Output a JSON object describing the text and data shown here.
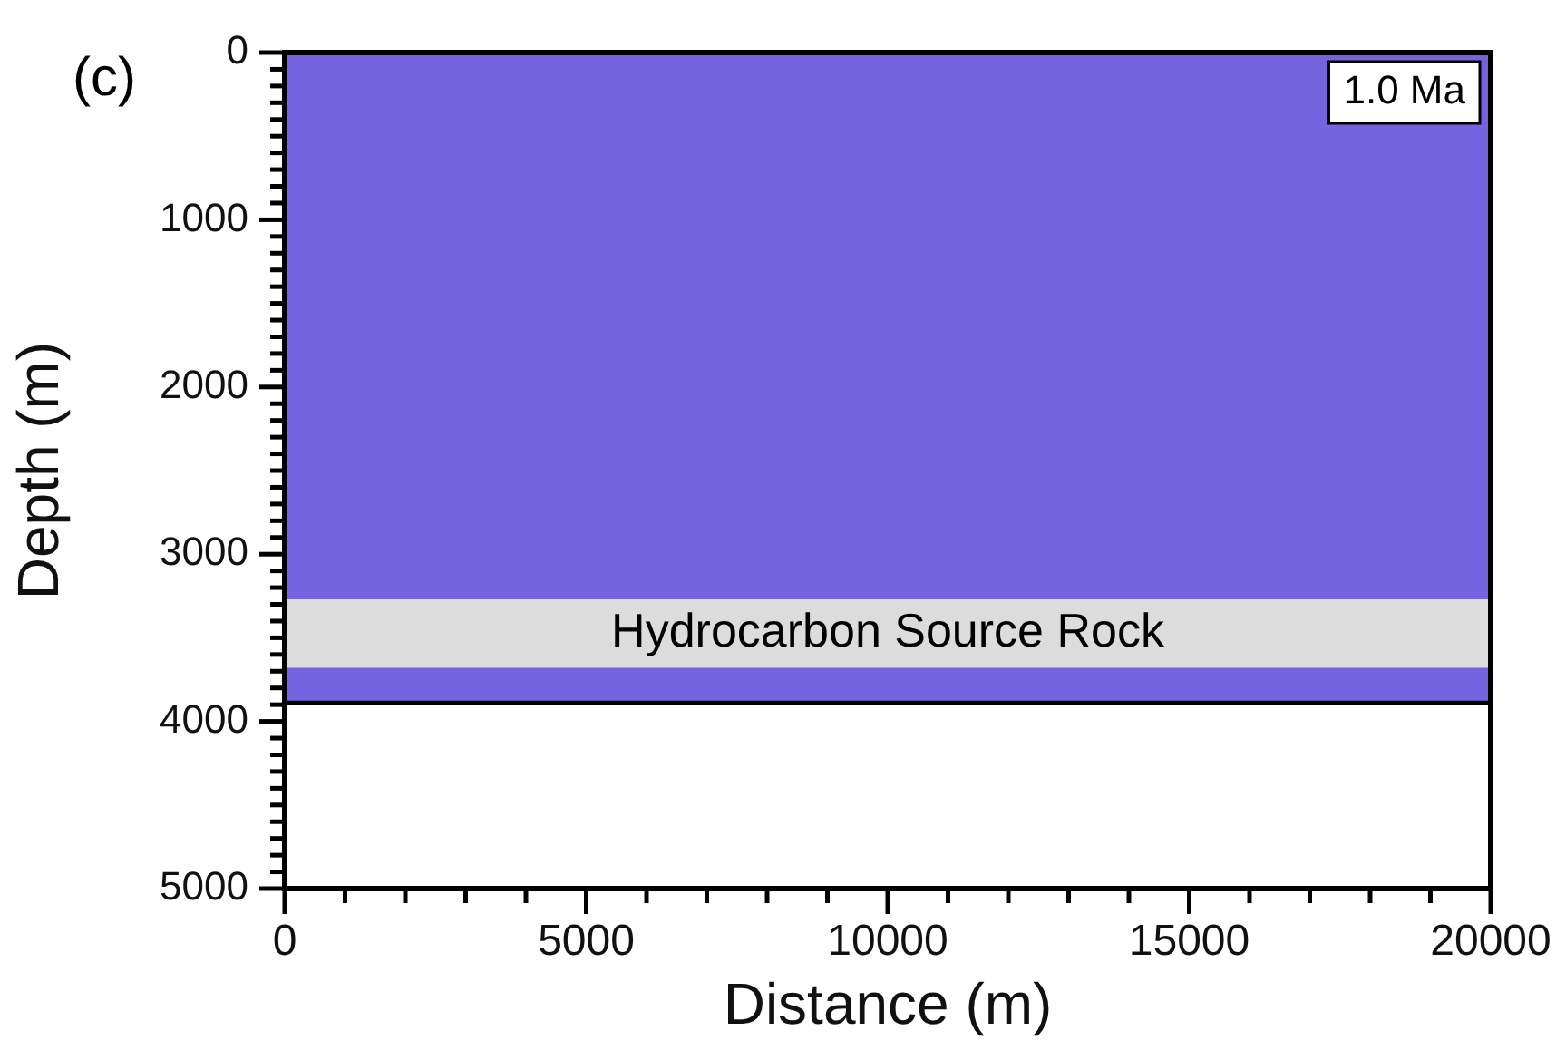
{
  "chart_data": {
    "type": "area",
    "xlabel": "Distance (m)",
    "ylabel": "Depth (m)",
    "x": [
      0,
      20000
    ],
    "series": [
      {
        "color": "#7563e0",
        "values": [
          3890,
          3890
        ]
      }
    ],
    "xlim": [
      0,
      20000
    ],
    "ylim": [
      5000,
      0
    ],
    "xticks": [
      0,
      {
        "value": 1000,
        "label": null
      },
      {
        "value": 2000,
        "label": null
      },
      {
        "value": 3000,
        "label": null
      },
      {
        "value": 4000,
        "label": null
      },
      5000,
      {
        "value": 6000,
        "label": null
      },
      {
        "value": 7000,
        "label": null
      },
      {
        "value": 8000,
        "label": null
      },
      {
        "value": 9000,
        "label": null
      },
      10000,
      {
        "value": 11000,
        "label": null
      },
      {
        "value": 12000,
        "label": null
      },
      {
        "value": 13000,
        "label": null
      },
      {
        "value": 14000,
        "label": null
      },
      15000,
      {
        "value": 16000,
        "label": null
      },
      {
        "value": 17000,
        "label": null
      },
      {
        "value": 18000,
        "label": null
      },
      {
        "value": 19000,
        "label": null
      },
      20000
    ],
    "yticks": [
      0,
      {
        "value": 100,
        "label": null
      },
      {
        "value": 200,
        "label": null
      },
      {
        "value": 300,
        "label": null
      },
      {
        "value": 400,
        "label": null
      },
      {
        "value": 500,
        "label": null
      },
      {
        "value": 600,
        "label": null
      },
      {
        "value": 700,
        "label": null
      },
      {
        "value": 800,
        "label": null
      },
      {
        "value": 900,
        "label": null
      },
      1000,
      {
        "value": 1100,
        "label": null
      },
      {
        "value": 1200,
        "label": null
      },
      {
        "value": 1300,
        "label": null
      },
      {
        "value": 1400,
        "label": null
      },
      {
        "value": 1500,
        "label": null
      },
      {
        "value": 1600,
        "label": null
      },
      {
        "value": 1700,
        "label": null
      },
      {
        "value": 1800,
        "label": null
      },
      {
        "value": 1900,
        "label": null
      },
      2000,
      {
        "value": 2100,
        "label": null
      },
      {
        "value": 2200,
        "label": null
      },
      {
        "value": 2300,
        "label": null
      },
      {
        "value": 2400,
        "label": null
      },
      {
        "value": 2500,
        "label": null
      },
      {
        "value": 2600,
        "label": null
      },
      {
        "value": 2700,
        "label": null
      },
      {
        "value": 2800,
        "label": null
      },
      {
        "value": 2900,
        "label": null
      },
      3000,
      {
        "value": 3100,
        "label": null
      },
      {
        "value": 3200,
        "label": null
      },
      {
        "value": 3300,
        "label": null
      },
      {
        "value": 3400,
        "label": null
      },
      {
        "value": 3500,
        "label": null
      },
      {
        "value": 3600,
        "label": null
      },
      {
        "value": 3700,
        "label": null
      },
      {
        "value": 3800,
        "label": null
      },
      {
        "value": 3900,
        "label": null
      },
      4000,
      {
        "value": 4100,
        "label": null
      },
      {
        "value": 4200,
        "label": null
      },
      {
        "value": 4300,
        "label": null
      },
      {
        "value": 4400,
        "label": null
      },
      {
        "value": 4500,
        "label": null
      },
      {
        "value": 4600,
        "label": null
      },
      {
        "value": 4700,
        "label": null
      },
      {
        "value": 4800,
        "label": null
      },
      {
        "value": 4900,
        "label": null
      },
      5000
    ],
    "bands": [
      {
        "axis": "y",
        "from": 3270,
        "to": 3680,
        "label": "Hydrocarbon Source Rock",
        "color": "#dcdcdc"
      }
    ],
    "ref_lines": [
      {
        "axis": "y",
        "value": 3890,
        "color": "#000000"
      }
    ],
    "annotations": [
      "(c)",
      "1.0 Ma"
    ],
    "grid": false,
    "legend": false
  }
}
